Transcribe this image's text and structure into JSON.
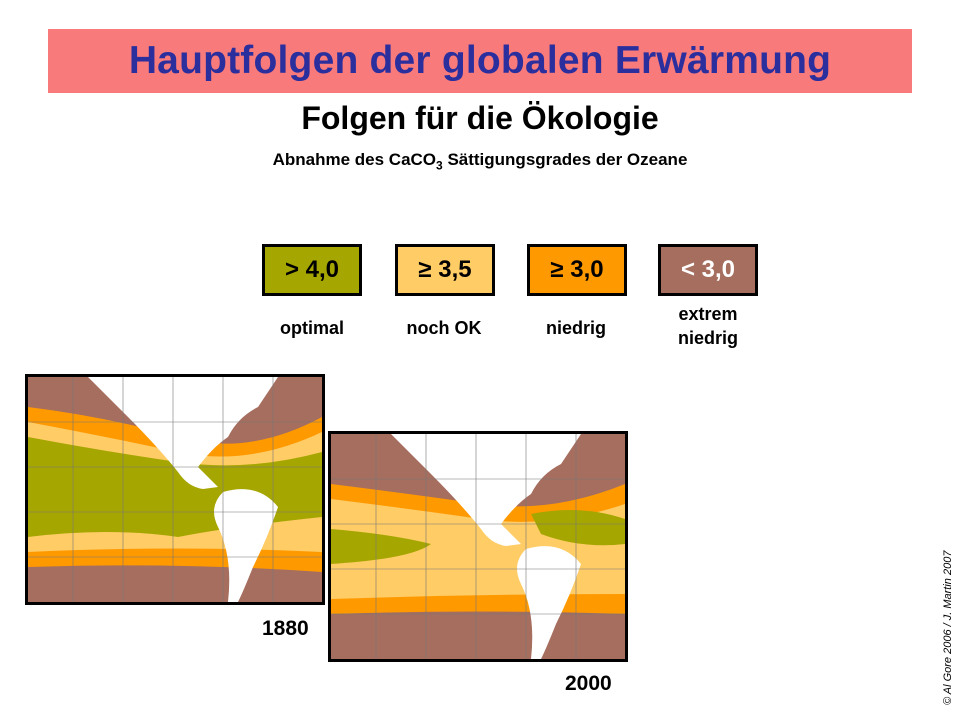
{
  "title": "Hauptfolgen der globalen Erwärmung",
  "subtitle": "Folgen für die Ökologie",
  "description": {
    "prefix": "Abnahme des CaCO",
    "subscript": "3",
    "suffix": " Sättigungsgrades der Ozeane"
  },
  "legend": [
    {
      "value": "> 4,0",
      "label": "optimal",
      "color": "#a6a600",
      "text_color": "#000000"
    },
    {
      "value": "≥ 3,5",
      "label": "noch OK",
      "color": "#ffcc66",
      "text_color": "#000000"
    },
    {
      "value": "≥ 3,0",
      "label": "niedrig",
      "color": "#ff9900",
      "text_color": "#000000"
    },
    {
      "value": "< 3,0",
      "label_line1": "extrem",
      "label_line2": "niedrig",
      "color": "#a66e5e",
      "text_color": "#ffffff"
    }
  ],
  "maps": [
    {
      "year": "1880"
    },
    {
      "year": "2000"
    }
  ],
  "copyright": "© Al Gore 2006 / J. Martin 2007"
}
